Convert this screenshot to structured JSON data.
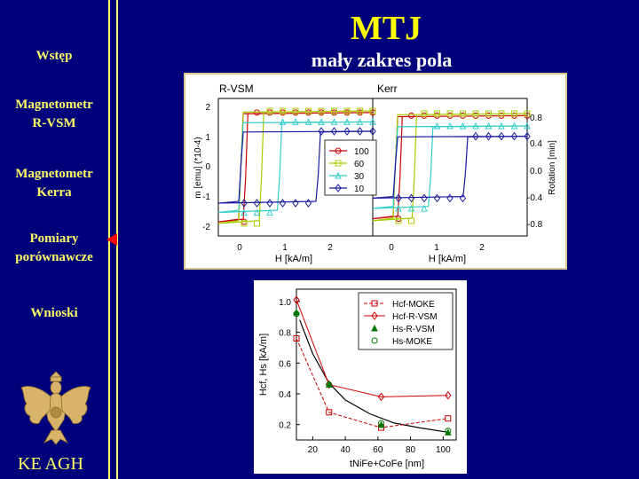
{
  "nav": {
    "items": [
      {
        "label_1": "Wstęp",
        "label_2": ""
      },
      {
        "label_1": "Magnetometr",
        "label_2": "R-VSM"
      },
      {
        "label_1": "Magnetometr",
        "label_2": "Kerra"
      },
      {
        "label_1": "Pomiary",
        "label_2": "porównawcze"
      },
      {
        "label_1": "Wnioski",
        "label_2": ""
      }
    ],
    "active_index": 3,
    "footer": "KE AGH",
    "logo": "eagle-emblem"
  },
  "slide": {
    "title": "MTJ",
    "subtitle": "mały zakres pola"
  },
  "colors": {
    "background": "#00007a",
    "nav_text": "#ffff66",
    "title": "#ffff00",
    "marker": "#ff0000"
  },
  "chart_data": [
    {
      "type": "line",
      "panel": "hysteresis-loops",
      "left_label": "R-VSM",
      "right_label": "Kerr",
      "xlabel_left": "H [kA/m]",
      "xlabel_right": "H [kA/m]",
      "ylabel_left": "m [emu] (*10-4)",
      "ylabel_right": "Rotation [min]",
      "left_yticks": [
        "2",
        "1",
        "0",
        "-1",
        "-2"
      ],
      "right_yticks": [
        "0.8",
        "0.4",
        "0.0",
        "-0.4",
        "-0.8"
      ],
      "x_ticks": [
        "0",
        "1",
        "2"
      ],
      "left_ylim": [
        -2.2,
        2.2
      ],
      "right_ylim": [
        -1.0,
        1.0
      ],
      "xlim": [
        -0.6,
        2.8
      ],
      "series": [
        {
          "name": "100",
          "color": "#cc0000",
          "marker": "circle",
          "hc": 0.0,
          "sat_left": 1.75,
          "sat_right": 0.75
        },
        {
          "name": "60",
          "color": "#aacc00",
          "marker": "square",
          "hc": 0.35,
          "sat_left": 1.8,
          "sat_right": 0.78
        },
        {
          "name": "30",
          "color": "#33cccc",
          "marker": "triangle",
          "hc": 0.75,
          "sat_left": 1.45,
          "sat_right": 0.6
        },
        {
          "name": "10",
          "color": "#1a1aa0",
          "marker": "diamond",
          "hc": 1.6,
          "sat_left": 1.15,
          "sat_right": 0.45
        }
      ]
    },
    {
      "type": "line",
      "panel": "coercivity-vs-thickness",
      "xlabel": "tNiFe+CoFe [nm]",
      "ylabel": "Hcf, Hs [kA/m]",
      "xlim": [
        10,
        108
      ],
      "ylim": [
        0.1,
        1.08
      ],
      "x_ticks": [
        20,
        40,
        60,
        80,
        100
      ],
      "y_ticks": [
        0.2,
        0.4,
        0.6,
        0.8,
        1.0
      ],
      "series": [
        {
          "name": "Hcf-MOKE",
          "color": "#cc0000",
          "marker": "square",
          "dashed": true,
          "x": [
            10,
            30,
            62,
            103
          ],
          "y": [
            0.76,
            0.28,
            0.18,
            0.24
          ]
        },
        {
          "name": "Hcf-R-VSM",
          "color": "#cc0000",
          "marker": "diamond",
          "dashed": false,
          "x": [
            10,
            30,
            62,
            103
          ],
          "y": [
            1.01,
            0.46,
            0.38,
            0.39
          ]
        },
        {
          "name": "Hs-R-VSM",
          "color": "#007700",
          "marker": "triangle",
          "dashed": false,
          "x": [
            10,
            30,
            62,
            103
          ],
          "y": [
            0.93,
            0.46,
            0.2,
            0.15
          ]
        },
        {
          "name": "Hs-MOKE",
          "color": "#007700",
          "marker": "circle",
          "dashed": false,
          "x": [
            10,
            30,
            62,
            103
          ],
          "y": [
            0.92,
            0.46,
            0.21,
            0.16
          ]
        }
      ],
      "fit_curve": {
        "color": "#000000",
        "x": [
          12,
          20,
          30,
          40,
          55,
          70,
          85,
          103
        ],
        "y": [
          0.88,
          0.66,
          0.47,
          0.36,
          0.27,
          0.21,
          0.18,
          0.15
        ]
      }
    }
  ]
}
